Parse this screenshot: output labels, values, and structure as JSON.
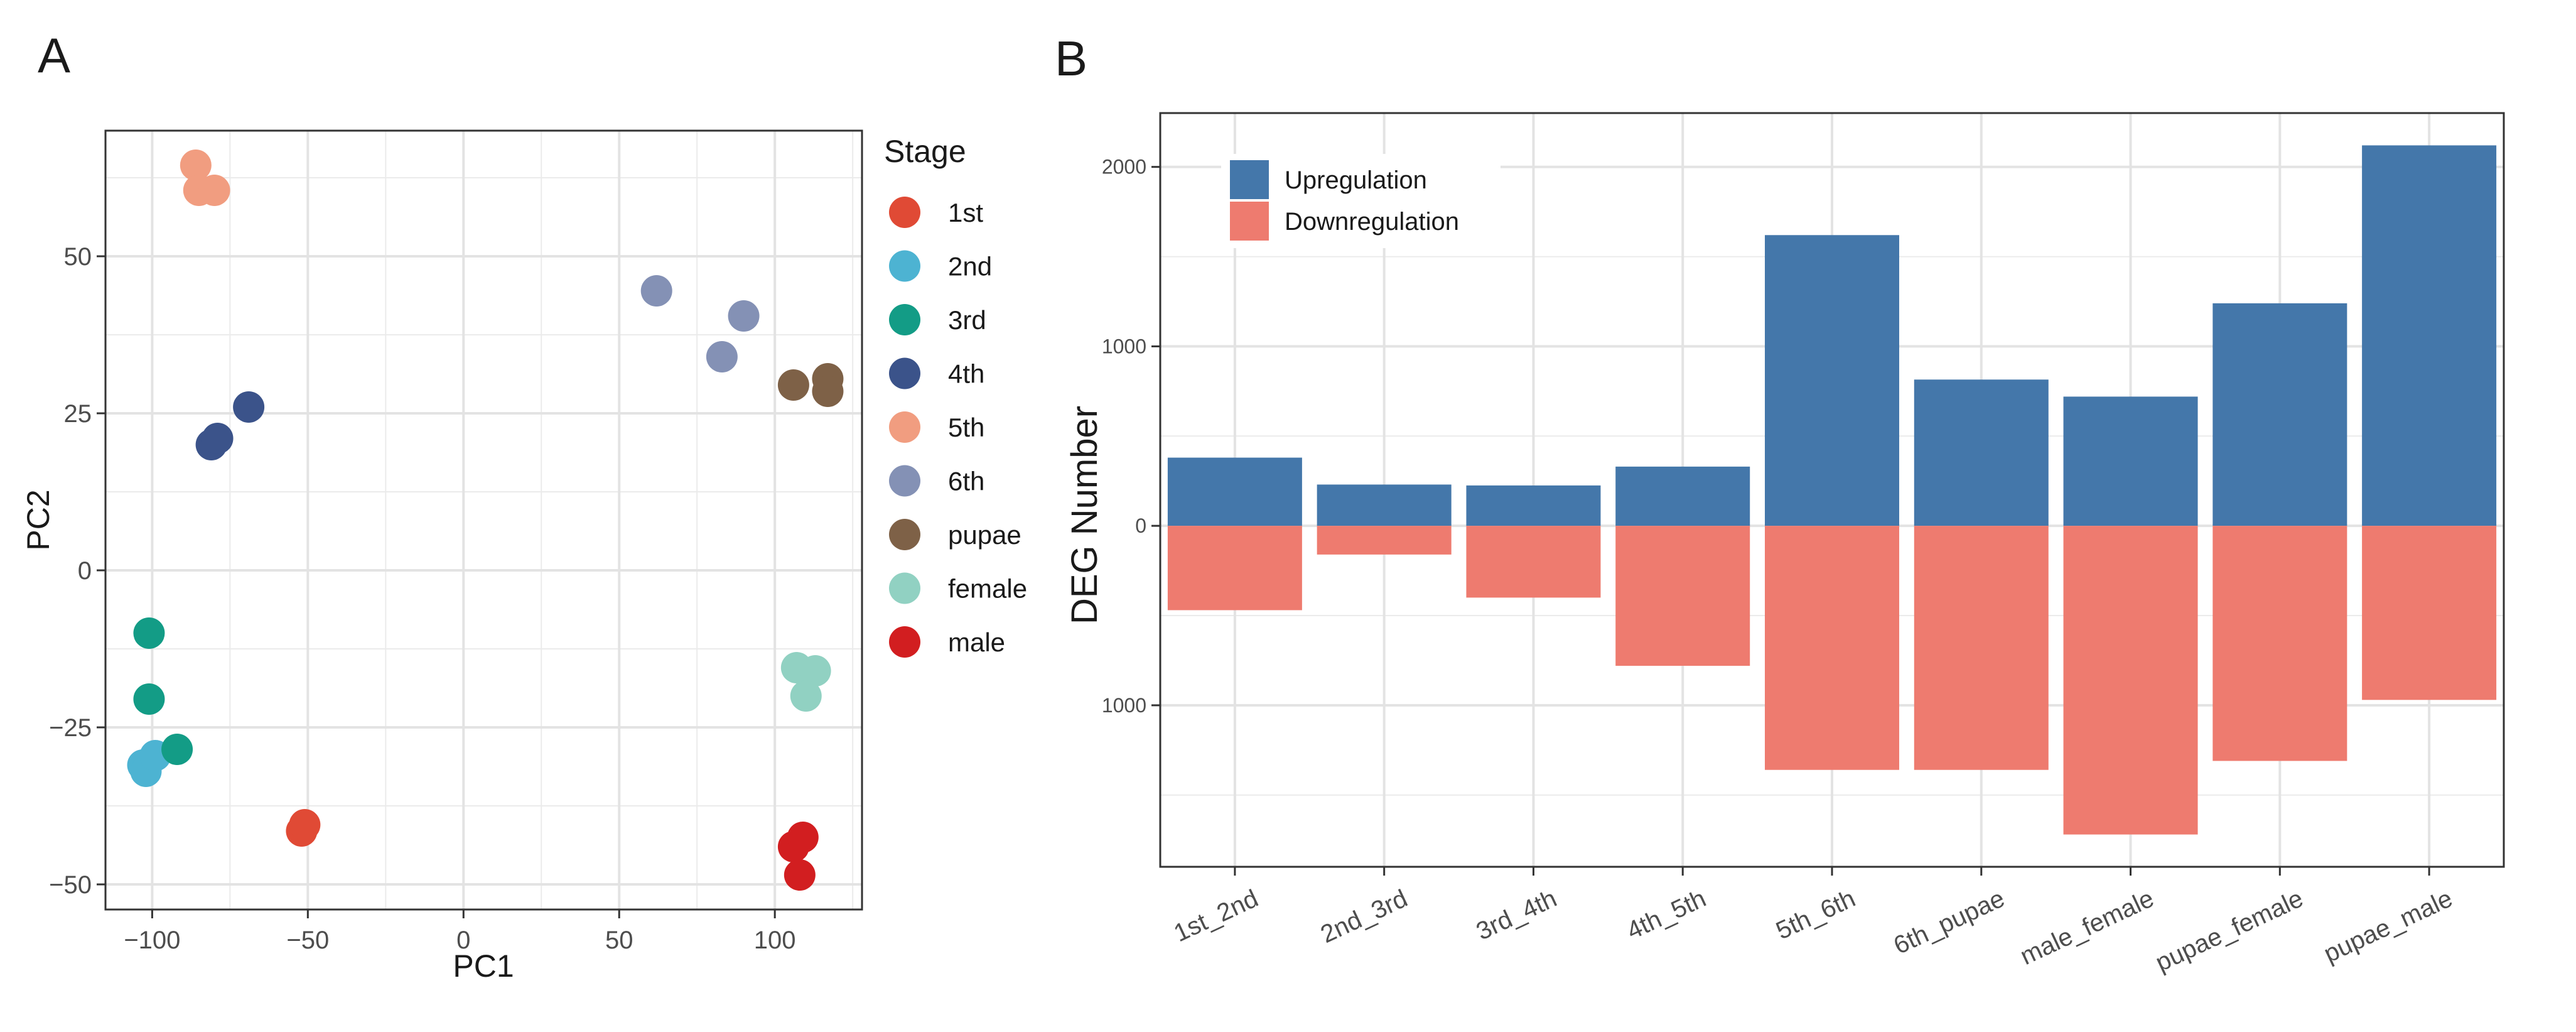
{
  "panels": {
    "a_label": "A",
    "b_label": "B"
  },
  "colors": {
    "gridline": "#ebebeb",
    "axis": "#333333",
    "text": "#1a1a1a",
    "tick_text": "#4d4d4d",
    "up": "#4477AA",
    "down": "#EE7B6F"
  },
  "chart_data": [
    {
      "type": "scatter",
      "xlabel": "PC1",
      "ylabel": "PC2",
      "xlim": [
        -115,
        128
      ],
      "ylim": [
        -54,
        70
      ],
      "xticks": [
        -100,
        -50,
        0,
        50,
        100
      ],
      "xtick_labels": [
        "−100",
        "−50",
        "0",
        "50",
        "100"
      ],
      "yticks": [
        -50,
        -25,
        0,
        25,
        50
      ],
      "ytick_labels": [
        "−50",
        "−25",
        "0",
        "25",
        "50"
      ],
      "grid": true,
      "legend_title": "Stage",
      "legend_position": "right",
      "series": [
        {
          "name": "1st",
          "color": "#E04A35",
          "points": [
            [
              -52,
              -41.5
            ],
            [
              -51,
              -40.5
            ]
          ]
        },
        {
          "name": "2nd",
          "color": "#4DB3D2",
          "points": [
            [
              -103,
              -31
            ],
            [
              -102,
              -32
            ],
            [
              -99,
              -29.5
            ]
          ]
        },
        {
          "name": "3rd",
          "color": "#139C86",
          "points": [
            [
              -101,
              -10
            ],
            [
              -101,
              -20.5
            ],
            [
              -92,
              -28.5
            ]
          ]
        },
        {
          "name": "4th",
          "color": "#3B538A",
          "points": [
            [
              -69,
              26
            ],
            [
              -81,
              20
            ],
            [
              -79,
              21
            ]
          ]
        },
        {
          "name": "5th",
          "color": "#F19D80",
          "points": [
            [
              -86,
              64.5
            ],
            [
              -85,
              60.5
            ],
            [
              -80,
              60.5
            ]
          ]
        },
        {
          "name": "6th",
          "color": "#8491B5",
          "points": [
            [
              62,
              44.5
            ],
            [
              90,
              40.5
            ],
            [
              83,
              34
            ]
          ]
        },
        {
          "name": "pupae",
          "color": "#7E6147",
          "points": [
            [
              106,
              29.5
            ],
            [
              117,
              30.5
            ],
            [
              117,
              28.5
            ]
          ]
        },
        {
          "name": "female",
          "color": "#91D1C2",
          "points": [
            [
              107,
              -15.5
            ],
            [
              113,
              -16
            ],
            [
              110,
              -20
            ]
          ]
        },
        {
          "name": "male",
          "color": "#D21E20",
          "points": [
            [
              106,
              -44
            ],
            [
              109,
              -42.5
            ],
            [
              108,
              -48.5
            ]
          ]
        }
      ]
    },
    {
      "type": "bar",
      "ylabel": "DEG Number",
      "categories": [
        "1st_2nd",
        "2nd_3rd",
        "3rd_4th",
        "4th_5th",
        "5th_6th",
        "6th_pupae",
        "male_female",
        "pupae_female",
        "pupae_male"
      ],
      "series": [
        {
          "name": "Upregulation",
          "color": "#4477AA",
          "values": [
            380,
            230,
            225,
            330,
            1620,
            815,
            720,
            1240,
            2120
          ]
        },
        {
          "name": "Downregulation",
          "color": "#EE7B6F",
          "values": [
            470,
            160,
            400,
            780,
            1360,
            1360,
            1720,
            1310,
            970
          ]
        }
      ],
      "ylim": [
        -1900,
        2300
      ],
      "yticks": [
        2000,
        1000,
        0,
        -1000
      ],
      "ytick_labels": [
        "2000",
        "1000",
        "0",
        "1000"
      ],
      "grid": true,
      "legend_position": "top-left"
    }
  ]
}
